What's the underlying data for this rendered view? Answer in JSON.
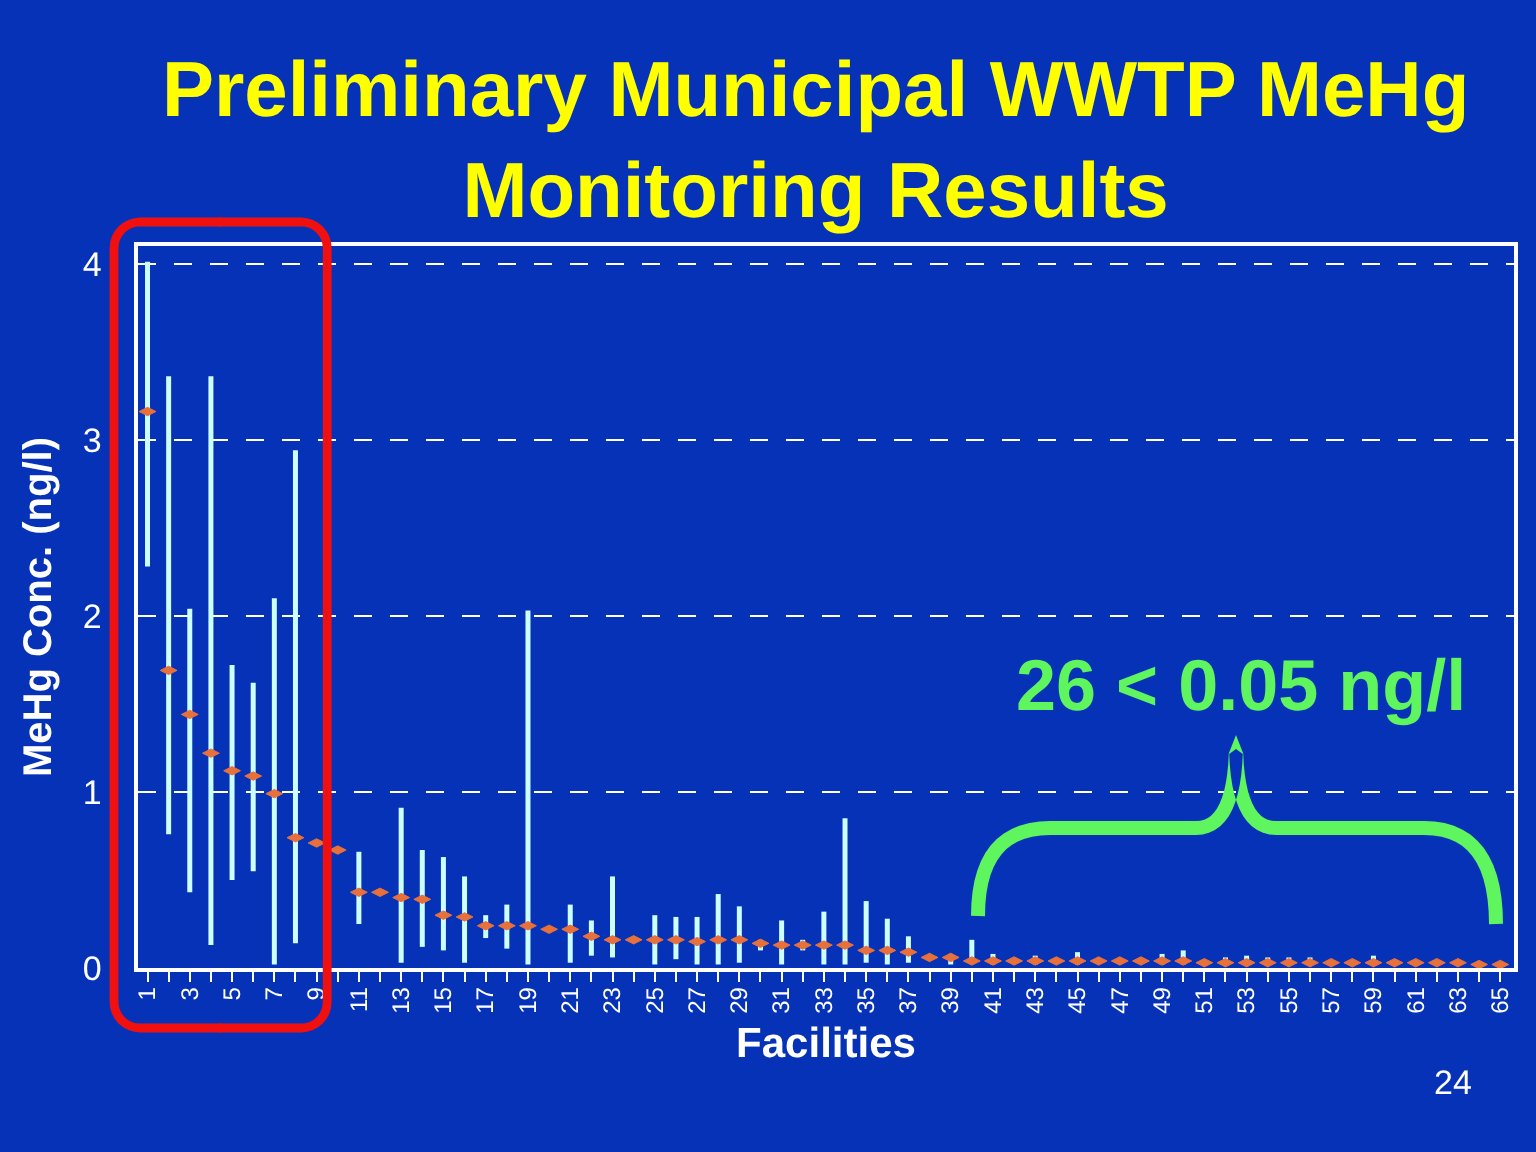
{
  "chart_data": {
    "type": "scatter",
    "title": "Preliminary Municipal WWTP MeHg Monitoring Results",
    "xlabel": "Facilities",
    "ylabel": "MeHg Conc. (ng/l)",
    "x": [
      1,
      2,
      3,
      4,
      5,
      6,
      7,
      8,
      9,
      10,
      11,
      12,
      13,
      14,
      15,
      16,
      17,
      18,
      19,
      20,
      21,
      22,
      23,
      24,
      25,
      26,
      27,
      28,
      29,
      30,
      31,
      32,
      33,
      34,
      35,
      36,
      37,
      38,
      39,
      40,
      41,
      42,
      43,
      44,
      45,
      46,
      47,
      48,
      49,
      50,
      51,
      52,
      53,
      54,
      55,
      56,
      57,
      58,
      59,
      60,
      61,
      62,
      63,
      64,
      65
    ],
    "values": [
      3.16,
      1.69,
      1.44,
      1.22,
      1.12,
      1.09,
      0.99,
      0.74,
      0.71,
      0.67,
      0.43,
      0.43,
      0.4,
      0.39,
      0.3,
      0.29,
      0.24,
      0.24,
      0.24,
      0.22,
      0.22,
      0.18,
      0.16,
      0.16,
      0.16,
      0.16,
      0.15,
      0.16,
      0.16,
      0.14,
      0.13,
      0.13,
      0.13,
      0.13,
      0.1,
      0.1,
      0.09,
      0.06,
      0.06,
      0.04,
      0.04,
      0.04,
      0.04,
      0.04,
      0.04,
      0.04,
      0.04,
      0.04,
      0.04,
      0.04,
      0.03,
      0.03,
      0.03,
      0.03,
      0.03,
      0.03,
      0.03,
      0.03,
      0.03,
      0.03,
      0.03,
      0.03,
      0.03,
      0.02,
      0.02
    ],
    "errors": [
      [
        2.28,
        4.01
      ],
      [
        0.76,
        3.36
      ],
      [
        0.43,
        2.04
      ],
      [
        0.13,
        3.36
      ],
      [
        0.5,
        1.72
      ],
      [
        0.55,
        1.62
      ],
      [
        0.02,
        2.1
      ],
      [
        0.14,
        2.94
      ],
      null,
      null,
      [
        0.25,
        0.66
      ],
      null,
      [
        0.03,
        0.91
      ],
      [
        0.12,
        0.67
      ],
      [
        0.1,
        0.63
      ],
      [
        0.03,
        0.52
      ],
      [
        0.17,
        0.3
      ],
      [
        0.11,
        0.36
      ],
      [
        0.02,
        2.03
      ],
      null,
      [
        0.03,
        0.36
      ],
      [
        0.07,
        0.27
      ],
      [
        0.06,
        0.52
      ],
      null,
      [
        0.02,
        0.3
      ],
      [
        0.05,
        0.29
      ],
      [
        0.02,
        0.29
      ],
      [
        0.02,
        0.42
      ],
      [
        0.03,
        0.35
      ],
      [
        0.1,
        0.16
      ],
      [
        0.02,
        0.27
      ],
      [
        0.1,
        0.16
      ],
      [
        0.02,
        0.32
      ],
      [
        0.02,
        0.85
      ],
      [
        0.03,
        0.38
      ],
      [
        0.02,
        0.28
      ],
      [
        0.03,
        0.18
      ],
      null,
      [
        0.02,
        0.08
      ],
      [
        0.03,
        0.16
      ],
      [
        0.02,
        0.08
      ],
      null,
      [
        0.02,
        0.07
      ],
      null,
      [
        0.02,
        0.09
      ],
      null,
      null,
      null,
      [
        0.02,
        0.08
      ],
      [
        0.02,
        0.1
      ],
      null,
      [
        0.02,
        0.06
      ],
      [
        0.02,
        0.07
      ],
      [
        0.02,
        0.06
      ],
      [
        0.02,
        0.06
      ],
      [
        0.02,
        0.06
      ],
      null,
      null,
      [
        0.02,
        0.07
      ],
      null,
      null,
      null,
      null,
      null,
      null
    ],
    "color": "#e8703a",
    "xlim": [
      0.55,
      65.65
    ],
    "xticks": [
      1,
      {
        "value": 2,
        "label": null
      },
      3,
      {
        "value": 4,
        "label": null
      },
      5,
      {
        "value": 6,
        "label": null
      },
      7,
      {
        "value": 8,
        "label": null
      },
      9,
      {
        "value": 10,
        "label": null
      },
      11,
      {
        "value": 12,
        "label": null
      },
      13,
      {
        "value": 14,
        "label": null
      },
      15,
      {
        "value": 16,
        "label": null
      },
      17,
      {
        "value": 18,
        "label": null
      },
      19,
      {
        "value": 20,
        "label": null
      },
      21,
      {
        "value": 22,
        "label": null
      },
      23,
      {
        "value": 24,
        "label": null
      },
      25,
      {
        "value": 26,
        "label": null
      },
      27,
      {
        "value": 28,
        "label": null
      },
      29,
      {
        "value": 30,
        "label": null
      },
      31,
      {
        "value": 32,
        "label": null
      },
      33,
      {
        "value": 34,
        "label": null
      },
      35,
      {
        "value": 36,
        "label": null
      },
      37,
      {
        "value": 38,
        "label": null
      },
      39,
      {
        "value": 40,
        "label": null
      },
      41,
      {
        "value": 42,
        "label": null
      },
      43,
      {
        "value": 44,
        "label": null
      },
      45,
      {
        "value": 46,
        "label": null
      },
      47,
      {
        "value": 48,
        "label": null
      },
      49,
      {
        "value": 50,
        "label": null
      },
      51,
      {
        "value": 52,
        "label": null
      },
      53,
      {
        "value": 54,
        "label": null
      },
      55,
      {
        "value": 56,
        "label": null
      },
      57,
      {
        "value": 58,
        "label": null
      },
      59,
      {
        "value": 60,
        "label": null
      },
      61,
      {
        "value": 62,
        "label": null
      },
      63,
      {
        "value": 64,
        "label": null
      },
      65
    ],
    "ylim": [
      0,
      4.1
    ],
    "yticks": [
      0,
      1,
      2,
      3,
      4
    ],
    "grid": "y",
    "annotations": [
      "26 < 0.05 ng/l",
      "24"
    ]
  }
}
